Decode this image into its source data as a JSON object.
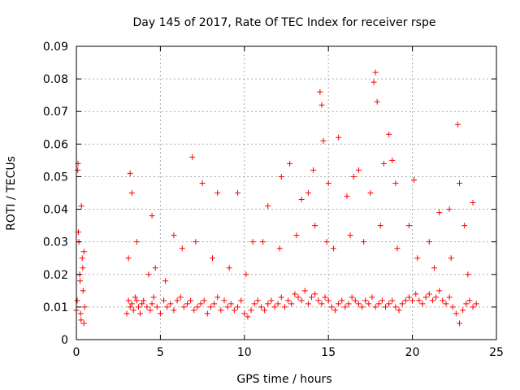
{
  "chart_data": {
    "type": "scatter",
    "title": "Day 145 of 2017, Rate Of TEC Index for receiver rspe",
    "xlabel": "GPS time / hours",
    "ylabel": "ROTI / TECUs",
    "xlim": [
      0,
      25
    ],
    "ylim": [
      0,
      0.09
    ],
    "x_ticks": [
      0,
      5,
      10,
      15,
      20,
      25
    ],
    "x_tick_labels": [
      "0",
      "5",
      "10",
      "15",
      "20",
      "25"
    ],
    "y_ticks": [
      0,
      0.01,
      0.02,
      0.03,
      0.04,
      0.05,
      0.06,
      0.07,
      0.08,
      0.09
    ],
    "y_tick_labels": [
      "0",
      "0.01",
      "0.02",
      "0.03",
      "0.04",
      "0.05",
      "0.06",
      "0.07",
      "0.08",
      "0.09"
    ],
    "grid": true,
    "marker": "plus",
    "color": "#ff0000",
    "series": [
      {
        "x": [
          0.0,
          0.05,
          0.1,
          0.15,
          0.2,
          0.25,
          0.3,
          0.35,
          0.4,
          0.45,
          0.5,
          0.08,
          0.12,
          0.22,
          0.28,
          0.38,
          0.45,
          3.0,
          3.1,
          3.2,
          3.3,
          3.4,
          3.5,
          3.6,
          3.7,
          3.8,
          3.9,
          4.0,
          4.2,
          4.4,
          4.5,
          4.6,
          4.8,
          5.0,
          5.2,
          5.4,
          5.6,
          5.8,
          6.0,
          6.2,
          6.4,
          6.6,
          6.8,
          7.0,
          7.2,
          7.4,
          7.6,
          7.8,
          8.0,
          8.2,
          8.4,
          8.6,
          8.8,
          9.0,
          9.2,
          9.4,
          9.6,
          9.8,
          10.0,
          10.2,
          10.4,
          10.6,
          10.8,
          11.0,
          11.2,
          11.4,
          11.6,
          11.8,
          12.0,
          12.2,
          12.4,
          12.6,
          12.8,
          13.0,
          13.2,
          13.4,
          13.6,
          13.8,
          14.0,
          14.2,
          14.4,
          14.6,
          14.8,
          15.0,
          15.2,
          15.4,
          15.6,
          15.8,
          16.0,
          16.2,
          16.4,
          16.6,
          16.8,
          17.0,
          17.2,
          17.4,
          17.6,
          17.8,
          18.0,
          18.2,
          18.4,
          18.6,
          18.8,
          19.0,
          19.2,
          19.4,
          19.6,
          19.8,
          20.0,
          20.2,
          20.4,
          20.6,
          20.8,
          21.0,
          21.2,
          21.4,
          21.6,
          21.8,
          22.0,
          22.2,
          22.4,
          22.6,
          22.8,
          23.0,
          23.2,
          23.4,
          23.6,
          23.8,
          3.2,
          3.3,
          4.5,
          5.8,
          6.9,
          7.5,
          8.4,
          9.6,
          10.5,
          11.4,
          12.2,
          12.7,
          13.4,
          13.8,
          14.1,
          14.5,
          14.6,
          14.7,
          15.0,
          15.6,
          16.1,
          16.5,
          16.8,
          17.5,
          17.7,
          17.8,
          17.9,
          18.3,
          18.6,
          18.8,
          19.0,
          19.8,
          20.1,
          21.0,
          21.6,
          22.2,
          22.7,
          22.8,
          23.1,
          23.6,
          3.1,
          3.6,
          4.3,
          4.7,
          5.3,
          6.3,
          7.1,
          8.1,
          9.1,
          10.1,
          11.1,
          12.1,
          13.1,
          14.2,
          14.9,
          15.3,
          16.3,
          17.1,
          18.1,
          19.1,
          20.3,
          21.3,
          22.3,
          23.3
        ],
        "y": [
          0.009,
          0.012,
          0.054,
          0.03,
          0.02,
          0.008,
          0.041,
          0.025,
          0.015,
          0.027,
          0.01,
          0.052,
          0.033,
          0.018,
          0.006,
          0.022,
          0.005,
          0.008,
          0.012,
          0.01,
          0.011,
          0.009,
          0.013,
          0.012,
          0.01,
          0.008,
          0.011,
          0.012,
          0.01,
          0.009,
          0.011,
          0.013,
          0.01,
          0.008,
          0.012,
          0.01,
          0.011,
          0.009,
          0.012,
          0.013,
          0.01,
          0.011,
          0.012,
          0.009,
          0.01,
          0.011,
          0.012,
          0.008,
          0.01,
          0.011,
          0.013,
          0.009,
          0.012,
          0.01,
          0.011,
          0.009,
          0.01,
          0.012,
          0.008,
          0.007,
          0.009,
          0.011,
          0.012,
          0.01,
          0.009,
          0.011,
          0.012,
          0.01,
          0.011,
          0.013,
          0.01,
          0.012,
          0.011,
          0.014,
          0.013,
          0.012,
          0.015,
          0.011,
          0.013,
          0.014,
          0.012,
          0.011,
          0.013,
          0.012,
          0.01,
          0.009,
          0.011,
          0.012,
          0.01,
          0.011,
          0.013,
          0.012,
          0.011,
          0.01,
          0.012,
          0.011,
          0.013,
          0.01,
          0.011,
          0.012,
          0.01,
          0.011,
          0.012,
          0.01,
          0.009,
          0.011,
          0.012,
          0.013,
          0.012,
          0.014,
          0.012,
          0.011,
          0.013,
          0.014,
          0.012,
          0.013,
          0.015,
          0.012,
          0.011,
          0.013,
          0.01,
          0.008,
          0.005,
          0.009,
          0.011,
          0.012,
          0.01,
          0.011,
          0.051,
          0.045,
          0.038,
          0.032,
          0.056,
          0.048,
          0.045,
          0.045,
          0.03,
          0.041,
          0.05,
          0.054,
          0.043,
          0.045,
          0.052,
          0.076,
          0.072,
          0.061,
          0.048,
          0.062,
          0.044,
          0.05,
          0.052,
          0.045,
          0.079,
          0.082,
          0.073,
          0.054,
          0.063,
          0.055,
          0.048,
          0.035,
          0.049,
          0.03,
          0.039,
          0.04,
          0.066,
          0.048,
          0.035,
          0.042,
          0.025,
          0.03,
          0.02,
          0.022,
          0.018,
          0.028,
          0.03,
          0.025,
          0.022,
          0.02,
          0.03,
          0.028,
          0.032,
          0.035,
          0.03,
          0.028,
          0.032,
          0.03,
          0.035,
          0.028,
          0.025,
          0.022,
          0.025,
          0.02
        ]
      }
    ]
  }
}
